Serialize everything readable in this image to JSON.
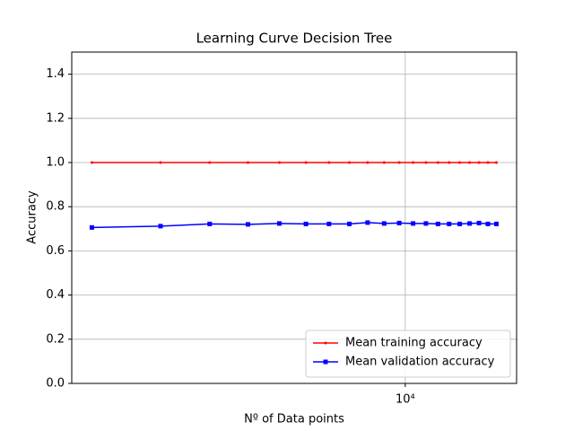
{
  "chart_data": {
    "type": "line",
    "title": "Learning Curve Decision Tree",
    "xlabel": "Nº of Data points",
    "ylabel": "Accuracy",
    "x": [
      1660,
      2460,
      3260,
      4060,
      4860,
      5660,
      6460,
      7260,
      8060,
      8860,
      9660,
      10460,
      11260,
      12060,
      12860,
      13660,
      14460,
      15260,
      16060,
      16860
    ],
    "series": [
      {
        "name": "Mean training accuracy",
        "color": "#ff0000",
        "marker": "point",
        "values": [
          1,
          1,
          1,
          1,
          1,
          1,
          1,
          1,
          1,
          1,
          1,
          1,
          1,
          1,
          1,
          1,
          1,
          1,
          1,
          1
        ]
      },
      {
        "name": "Mean validation accuracy",
        "color": "#0000ff",
        "marker": "square",
        "values": [
          0.706,
          0.712,
          0.722,
          0.72,
          0.724,
          0.722,
          0.722,
          0.722,
          0.728,
          0.724,
          0.726,
          0.724,
          0.724,
          0.722,
          0.722,
          0.722,
          0.724,
          0.726,
          0.722,
          0.722
        ]
      }
    ],
    "xscale": "log",
    "xlim": [
      1479,
      18930
    ],
    "ylim": [
      0,
      1.5
    ],
    "xticks": [
      {
        "value": 10000,
        "label": "10⁴"
      }
    ],
    "yticks": [
      {
        "value": 0,
        "label": "0.0"
      },
      {
        "value": 0.2,
        "label": "0.2"
      },
      {
        "value": 0.4,
        "label": "0.4"
      },
      {
        "value": 0.6,
        "label": "0.6"
      },
      {
        "value": 0.8,
        "label": "0.8"
      },
      {
        "value": 1,
        "label": "1.0"
      },
      {
        "value": 1.2,
        "label": "1.2"
      },
      {
        "value": 1.4,
        "label": "1.4"
      }
    ],
    "grid": true,
    "legend": "lower right"
  }
}
